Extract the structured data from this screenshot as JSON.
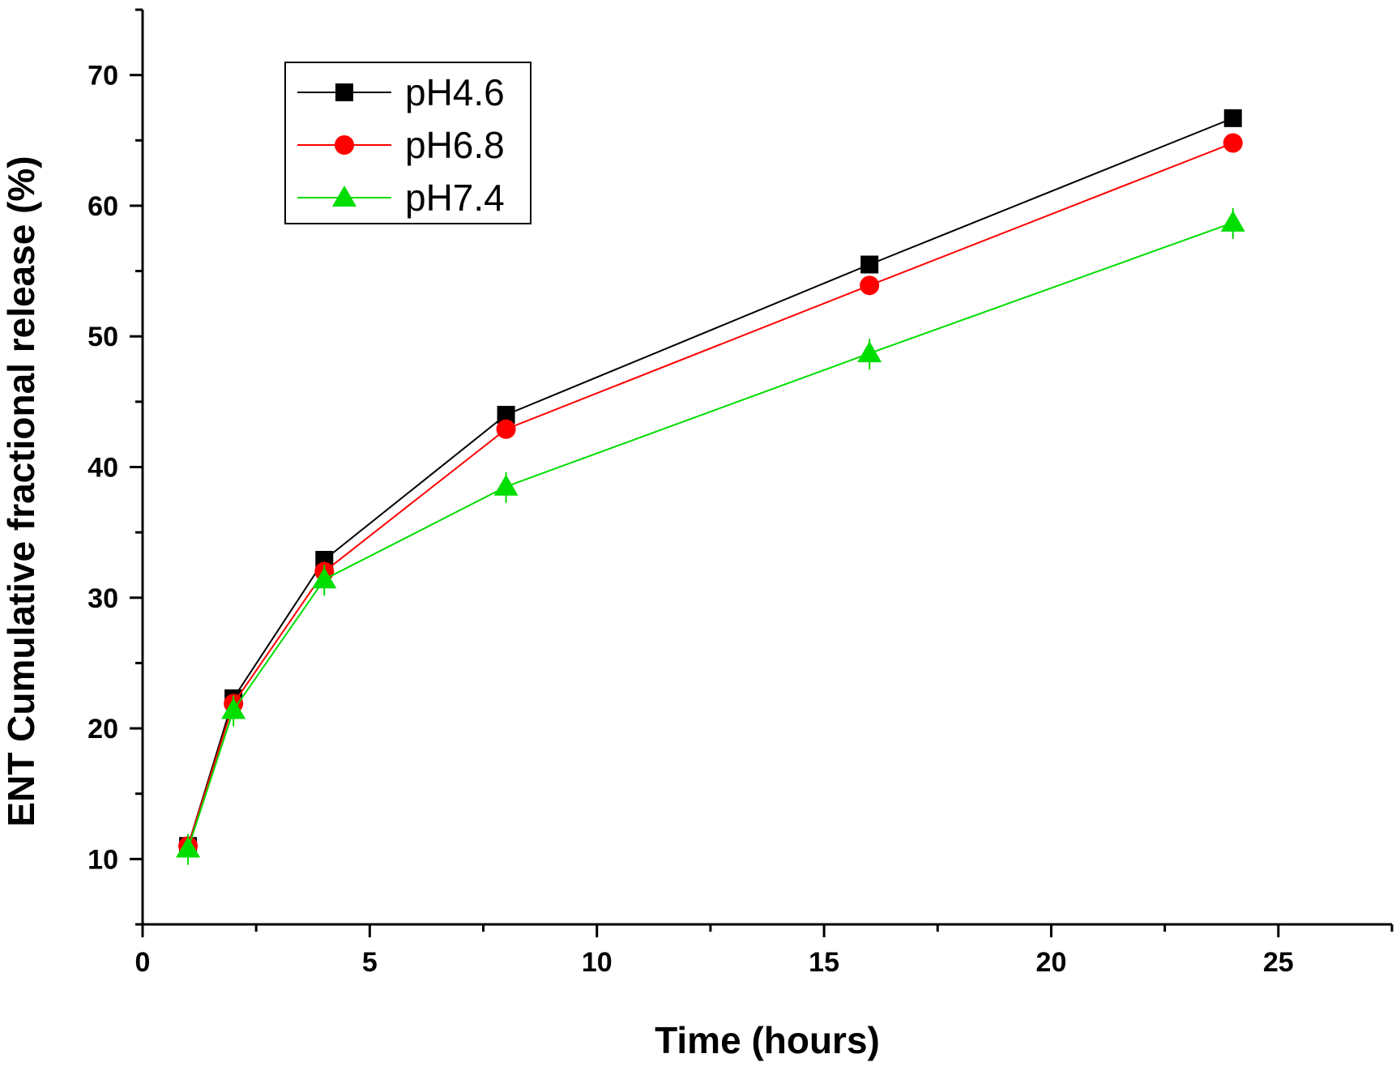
{
  "chart_data": {
    "type": "line",
    "title": "",
    "xlabel": "Time (hours)",
    "ylabel": "ENT Cumulative fractional release (%)",
    "xlim": [
      0,
      27.5
    ],
    "ylim": [
      5,
      75
    ],
    "xticks": [
      0,
      5,
      10,
      15,
      20,
      25
    ],
    "yticks": [
      10,
      20,
      30,
      40,
      50,
      60,
      70
    ],
    "grid": false,
    "legend_position": "top-left",
    "x": [
      1,
      2,
      4,
      8,
      16,
      24
    ],
    "series": [
      {
        "name": "pH4.6",
        "color": "#000000",
        "marker": "square",
        "values": [
          11.0,
          22.3,
          32.9,
          44.0,
          55.5,
          66.7
        ]
      },
      {
        "name": "pH6.8",
        "color": "#ff0000",
        "marker": "circle",
        "values": [
          11.0,
          21.9,
          32.0,
          42.9,
          53.9,
          64.8
        ]
      },
      {
        "name": "pH7.4",
        "color": "#00dd00",
        "marker": "triangle",
        "values": [
          10.8,
          21.4,
          31.4,
          38.5,
          48.7,
          58.7
        ]
      }
    ]
  }
}
